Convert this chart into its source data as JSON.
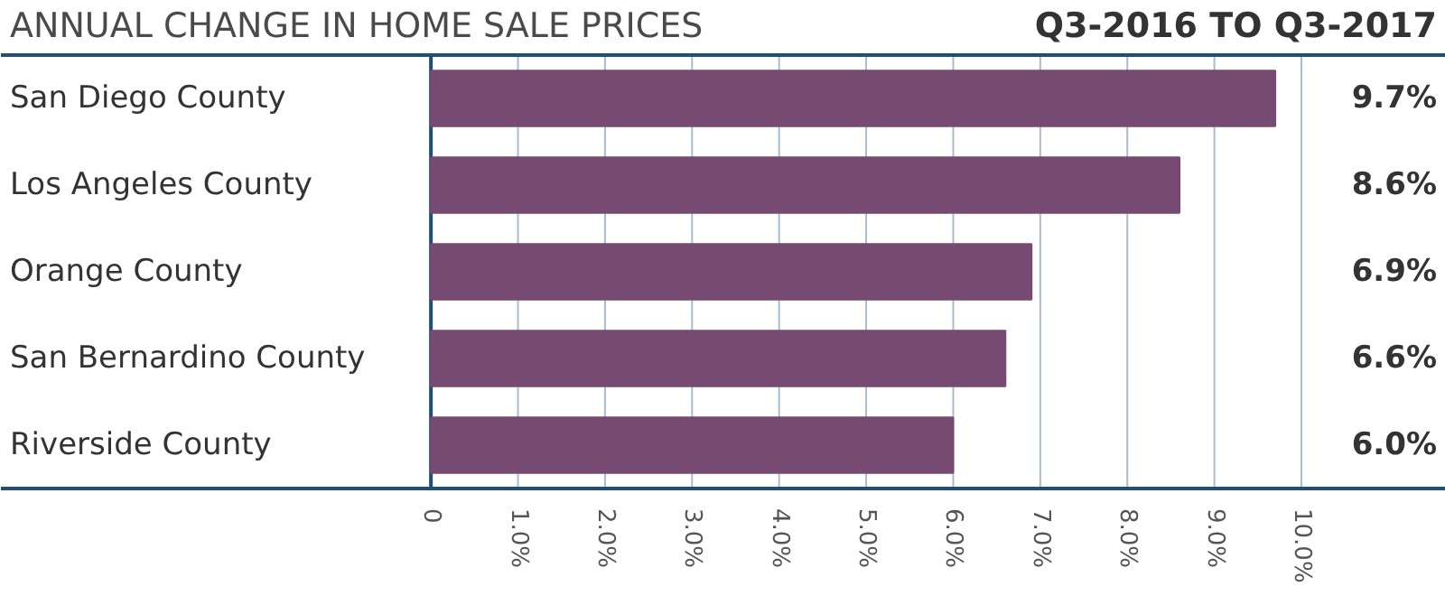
{
  "chart_data": {
    "type": "bar",
    "orientation": "horizontal",
    "title": "ANNUAL CHANGE IN HOME SALE PRICES",
    "subtitle": "Q3-2016 TO Q3-2017",
    "categories": [
      "San Diego County",
      "Los Angeles County",
      "Orange County",
      "San Bernardino County",
      "Riverside County"
    ],
    "values": [
      9.7,
      8.6,
      6.9,
      6.6,
      6.0
    ],
    "value_labels": [
      "9.7%",
      "8.6%",
      "6.9%",
      "6.6%",
      "6.0%"
    ],
    "color": "#774a73",
    "xlim": [
      -4.94,
      11.66
    ],
    "xticks": [
      {
        "value": 0,
        "label": "0"
      },
      {
        "value": 1,
        "label": "1.0%"
      },
      {
        "value": 2,
        "label": "2.0%"
      },
      {
        "value": 3,
        "label": "3.0%"
      },
      {
        "value": 4,
        "label": "4.0%"
      },
      {
        "value": 5,
        "label": "5.0%"
      },
      {
        "value": 6,
        "label": "6.0%"
      },
      {
        "value": 7,
        "label": "7.0%"
      },
      {
        "value": 8,
        "label": "8.0%"
      },
      {
        "value": 9,
        "label": "9.0%"
      },
      {
        "value": 10,
        "label": "10.0%"
      }
    ],
    "grid": "x"
  }
}
